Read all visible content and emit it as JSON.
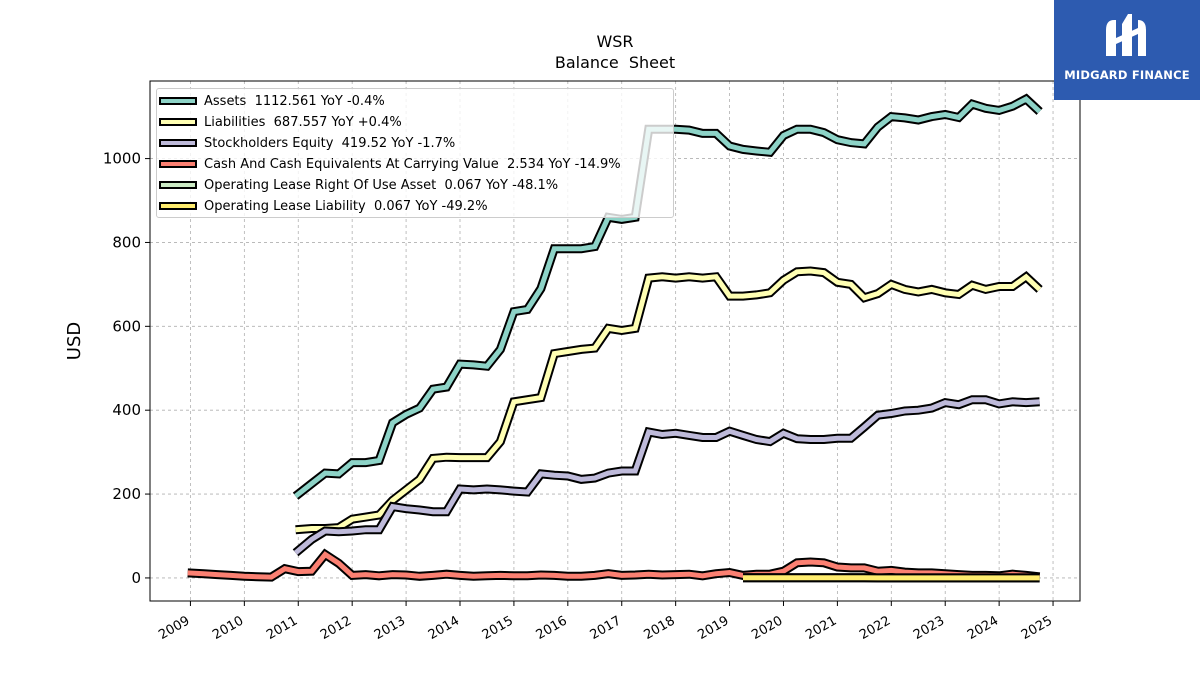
{
  "chart_data": {
    "type": "line",
    "title": "WSR",
    "subtitle": "Balance  Sheet",
    "ylabel": "USD",
    "xlabel": "",
    "xlim": [
      2008.25,
      2025.5
    ],
    "ylim": [
      -55,
      1185
    ],
    "x_ticks": [
      "2009",
      "2010",
      "2011",
      "2012",
      "2013",
      "2014",
      "2015",
      "2016",
      "2017",
      "2018",
      "2019",
      "2020",
      "2021",
      "2022",
      "2023",
      "2024",
      "2025"
    ],
    "y_ticks": [
      0,
      200,
      400,
      600,
      800,
      1000
    ],
    "grid": true,
    "legend_position": "top-left",
    "series": [
      {
        "name": "Assets  1112.561 YoY -0.4%",
        "color": "#8dd3c7",
        "points": [
          [
            2010.95,
            195
          ],
          [
            2011.25,
            225
          ],
          [
            2011.5,
            250
          ],
          [
            2011.75,
            248
          ],
          [
            2012.0,
            275
          ],
          [
            2012.25,
            275
          ],
          [
            2012.5,
            280
          ],
          [
            2012.75,
            370
          ],
          [
            2013.0,
            390
          ],
          [
            2013.25,
            405
          ],
          [
            2013.5,
            450
          ],
          [
            2013.75,
            455
          ],
          [
            2014.0,
            510
          ],
          [
            2014.25,
            508
          ],
          [
            2014.5,
            505
          ],
          [
            2014.75,
            545
          ],
          [
            2015.0,
            635
          ],
          [
            2015.25,
            640
          ],
          [
            2015.5,
            690
          ],
          [
            2015.75,
            785
          ],
          [
            2016.0,
            785
          ],
          [
            2016.25,
            785
          ],
          [
            2016.5,
            790
          ],
          [
            2016.75,
            860
          ],
          [
            2017.0,
            855
          ],
          [
            2017.25,
            860
          ],
          [
            2017.5,
            1070
          ],
          [
            2017.75,
            1070
          ],
          [
            2018.0,
            1070
          ],
          [
            2018.25,
            1068
          ],
          [
            2018.5,
            1060
          ],
          [
            2018.75,
            1060
          ],
          [
            2019.0,
            1030
          ],
          [
            2019.25,
            1022
          ],
          [
            2019.5,
            1018
          ],
          [
            2019.75,
            1015
          ],
          [
            2020.0,
            1055
          ],
          [
            2020.25,
            1070
          ],
          [
            2020.5,
            1070
          ],
          [
            2020.75,
            1062
          ],
          [
            2021.0,
            1045
          ],
          [
            2021.25,
            1038
          ],
          [
            2021.5,
            1035
          ],
          [
            2021.75,
            1075
          ],
          [
            2022.0,
            1100
          ],
          [
            2022.25,
            1097
          ],
          [
            2022.5,
            1092
          ],
          [
            2022.75,
            1100
          ],
          [
            2023.0,
            1105
          ],
          [
            2023.25,
            1098
          ],
          [
            2023.5,
            1130
          ],
          [
            2023.75,
            1120
          ],
          [
            2024.0,
            1115
          ],
          [
            2024.25,
            1125
          ],
          [
            2024.5,
            1142
          ],
          [
            2024.75,
            1112
          ]
        ]
      },
      {
        "name": "Liabilities  687.557 YoY +0.4%",
        "color": "#ffffb3",
        "points": [
          [
            2010.95,
            115
          ],
          [
            2011.25,
            118
          ],
          [
            2011.5,
            118
          ],
          [
            2011.75,
            120
          ],
          [
            2012.0,
            140
          ],
          [
            2012.25,
            145
          ],
          [
            2012.5,
            150
          ],
          [
            2012.75,
            185
          ],
          [
            2013.0,
            210
          ],
          [
            2013.25,
            235
          ],
          [
            2013.5,
            285
          ],
          [
            2013.75,
            288
          ],
          [
            2014.0,
            287
          ],
          [
            2014.25,
            287
          ],
          [
            2014.5,
            287
          ],
          [
            2014.75,
            325
          ],
          [
            2015.0,
            420
          ],
          [
            2015.25,
            425
          ],
          [
            2015.5,
            430
          ],
          [
            2015.75,
            535
          ],
          [
            2016.0,
            540
          ],
          [
            2016.25,
            545
          ],
          [
            2016.5,
            548
          ],
          [
            2016.75,
            595
          ],
          [
            2017.0,
            590
          ],
          [
            2017.25,
            595
          ],
          [
            2017.5,
            715
          ],
          [
            2017.75,
            718
          ],
          [
            2018.0,
            715
          ],
          [
            2018.25,
            718
          ],
          [
            2018.5,
            715
          ],
          [
            2018.75,
            718
          ],
          [
            2019.0,
            672
          ],
          [
            2019.25,
            672
          ],
          [
            2019.5,
            675
          ],
          [
            2019.75,
            680
          ],
          [
            2020.0,
            710
          ],
          [
            2020.25,
            730
          ],
          [
            2020.5,
            732
          ],
          [
            2020.75,
            728
          ],
          [
            2021.0,
            705
          ],
          [
            2021.25,
            700
          ],
          [
            2021.5,
            668
          ],
          [
            2021.75,
            678
          ],
          [
            2022.0,
            700
          ],
          [
            2022.25,
            688
          ],
          [
            2022.5,
            682
          ],
          [
            2022.75,
            688
          ],
          [
            2023.0,
            680
          ],
          [
            2023.25,
            676
          ],
          [
            2023.5,
            698
          ],
          [
            2023.75,
            688
          ],
          [
            2024.0,
            695
          ],
          [
            2024.25,
            695
          ],
          [
            2024.5,
            718
          ],
          [
            2024.75,
            688
          ]
        ]
      },
      {
        "name": "Stockholders Equity  419.52 YoY -1.7%",
        "color": "#bebada",
        "points": [
          [
            2010.95,
            60
          ],
          [
            2011.25,
            92
          ],
          [
            2011.5,
            112
          ],
          [
            2011.75,
            110
          ],
          [
            2012.0,
            112
          ],
          [
            2012.25,
            115
          ],
          [
            2012.5,
            115
          ],
          [
            2012.75,
            170
          ],
          [
            2013.0,
            165
          ],
          [
            2013.25,
            162
          ],
          [
            2013.5,
            158
          ],
          [
            2013.75,
            158
          ],
          [
            2014.0,
            212
          ],
          [
            2014.25,
            210
          ],
          [
            2014.5,
            212
          ],
          [
            2014.75,
            210
          ],
          [
            2015.0,
            207
          ],
          [
            2015.25,
            205
          ],
          [
            2015.5,
            248
          ],
          [
            2015.75,
            245
          ],
          [
            2016.0,
            243
          ],
          [
            2016.25,
            235
          ],
          [
            2016.5,
            238
          ],
          [
            2016.75,
            250
          ],
          [
            2017.0,
            255
          ],
          [
            2017.25,
            255
          ],
          [
            2017.5,
            348
          ],
          [
            2017.75,
            342
          ],
          [
            2018.0,
            345
          ],
          [
            2018.25,
            340
          ],
          [
            2018.5,
            335
          ],
          [
            2018.75,
            335
          ],
          [
            2019.0,
            350
          ],
          [
            2019.25,
            340
          ],
          [
            2019.5,
            330
          ],
          [
            2019.75,
            325
          ],
          [
            2020.0,
            345
          ],
          [
            2020.25,
            332
          ],
          [
            2020.5,
            330
          ],
          [
            2020.75,
            330
          ],
          [
            2021.0,
            333
          ],
          [
            2021.25,
            333
          ],
          [
            2021.5,
            360
          ],
          [
            2021.75,
            388
          ],
          [
            2022.0,
            392
          ],
          [
            2022.25,
            398
          ],
          [
            2022.5,
            400
          ],
          [
            2022.75,
            405
          ],
          [
            2023.0,
            418
          ],
          [
            2023.25,
            413
          ],
          [
            2023.5,
            425
          ],
          [
            2023.75,
            425
          ],
          [
            2024.0,
            415
          ],
          [
            2024.25,
            420
          ],
          [
            2024.5,
            418
          ],
          [
            2024.75,
            420
          ]
        ]
      },
      {
        "name": "Cash And Cash Equivalents At Carrying Value  2.534 YoY -14.9%",
        "color": "#fb8072",
        "points": [
          [
            2008.95,
            12
          ],
          [
            2009.25,
            10
          ],
          [
            2009.5,
            8
          ],
          [
            2009.75,
            6
          ],
          [
            2010.0,
            4
          ],
          [
            2010.25,
            3
          ],
          [
            2010.5,
            2
          ],
          [
            2010.75,
            22
          ],
          [
            2011.0,
            15
          ],
          [
            2011.25,
            16
          ],
          [
            2011.5,
            56
          ],
          [
            2011.75,
            35
          ],
          [
            2012.0,
            6
          ],
          [
            2012.25,
            8
          ],
          [
            2012.5,
            5
          ],
          [
            2012.75,
            8
          ],
          [
            2013.0,
            7
          ],
          [
            2013.25,
            4
          ],
          [
            2013.5,
            6
          ],
          [
            2013.75,
            9
          ],
          [
            2014.0,
            6
          ],
          [
            2014.25,
            4
          ],
          [
            2014.5,
            5
          ],
          [
            2014.75,
            6
          ],
          [
            2015.0,
            5
          ],
          [
            2015.25,
            5
          ],
          [
            2015.5,
            7
          ],
          [
            2015.75,
            6
          ],
          [
            2016.0,
            4
          ],
          [
            2016.25,
            4
          ],
          [
            2016.5,
            6
          ],
          [
            2016.75,
            10
          ],
          [
            2017.0,
            6
          ],
          [
            2017.25,
            7
          ],
          [
            2017.5,
            9
          ],
          [
            2017.75,
            7
          ],
          [
            2018.0,
            8
          ],
          [
            2018.25,
            9
          ],
          [
            2018.5,
            5
          ],
          [
            2018.75,
            10
          ],
          [
            2019.0,
            13
          ],
          [
            2019.25,
            6
          ],
          [
            2019.5,
            9
          ],
          [
            2019.75,
            9
          ],
          [
            2020.0,
            16
          ],
          [
            2020.25,
            36
          ],
          [
            2020.5,
            38
          ],
          [
            2020.75,
            36
          ],
          [
            2021.0,
            26
          ],
          [
            2021.25,
            24
          ],
          [
            2021.5,
            24
          ],
          [
            2021.75,
            16
          ],
          [
            2022.0,
            18
          ],
          [
            2022.25,
            14
          ],
          [
            2022.5,
            12
          ],
          [
            2022.75,
            12
          ],
          [
            2023.0,
            10
          ],
          [
            2023.25,
            8
          ],
          [
            2023.5,
            6
          ],
          [
            2023.75,
            6
          ],
          [
            2024.0,
            5
          ],
          [
            2024.25,
            9
          ],
          [
            2024.5,
            6
          ],
          [
            2024.75,
            2.5
          ]
        ]
      },
      {
        "name": "Operating Lease Right Of Use Asset  0.067 YoY -48.1%",
        "color": "#ccebc5",
        "points": [
          [
            2019.25,
            0.5
          ],
          [
            2019.5,
            0.45
          ],
          [
            2019.75,
            0.42
          ],
          [
            2020.0,
            0.4
          ],
          [
            2020.25,
            0.36
          ],
          [
            2020.5,
            0.33
          ],
          [
            2020.75,
            0.3
          ],
          [
            2021.0,
            0.27
          ],
          [
            2021.25,
            0.24
          ],
          [
            2021.5,
            0.22
          ],
          [
            2021.75,
            0.2
          ],
          [
            2022.0,
            0.18
          ],
          [
            2022.25,
            0.16
          ],
          [
            2022.5,
            0.15
          ],
          [
            2022.75,
            0.14
          ],
          [
            2023.0,
            0.13
          ],
          [
            2023.25,
            0.12
          ],
          [
            2023.5,
            0.11
          ],
          [
            2023.75,
            0.1
          ],
          [
            2024.0,
            0.09
          ],
          [
            2024.25,
            0.08
          ],
          [
            2024.5,
            0.07
          ],
          [
            2024.75,
            0.067
          ]
        ]
      },
      {
        "name": "Operating Lease Liability  0.067 YoY -49.2%",
        "color": "#ffed6f",
        "points": [
          [
            2019.25,
            0.5
          ],
          [
            2019.5,
            0.45
          ],
          [
            2019.75,
            0.42
          ],
          [
            2020.0,
            0.4
          ],
          [
            2020.25,
            0.36
          ],
          [
            2020.5,
            0.33
          ],
          [
            2020.75,
            0.3
          ],
          [
            2021.0,
            0.27
          ],
          [
            2021.25,
            0.24
          ],
          [
            2021.5,
            0.22
          ],
          [
            2021.75,
            0.2
          ],
          [
            2022.0,
            0.18
          ],
          [
            2022.25,
            0.16
          ],
          [
            2022.5,
            0.15
          ],
          [
            2022.75,
            0.14
          ],
          [
            2023.0,
            0.13
          ],
          [
            2023.25,
            0.12
          ],
          [
            2023.5,
            0.11
          ],
          [
            2023.75,
            0.1
          ],
          [
            2024.0,
            0.09
          ],
          [
            2024.25,
            0.08
          ],
          [
            2024.5,
            0.07
          ],
          [
            2024.75,
            0.067
          ]
        ]
      }
    ]
  },
  "logo": {
    "text": "MIDGARD FINANCE",
    "icon": "midgard-monogram-icon",
    "background": "#2d5bb0"
  }
}
